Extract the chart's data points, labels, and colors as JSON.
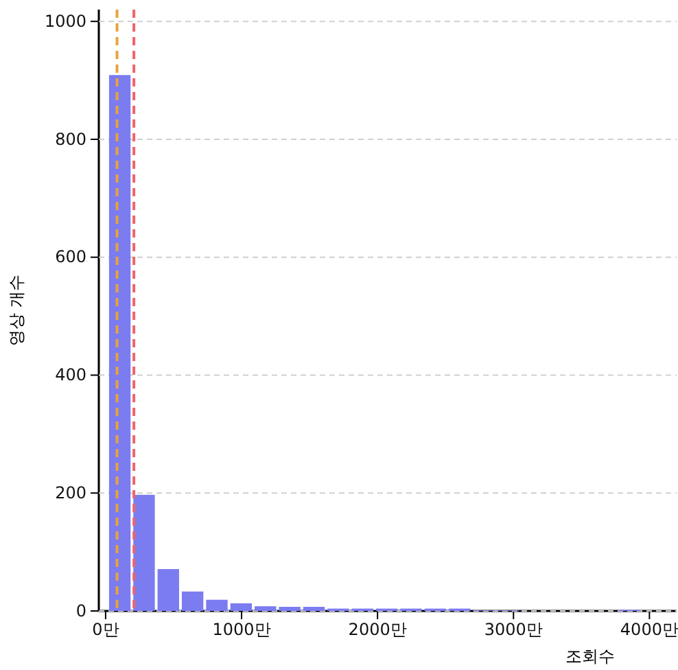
{
  "chart_data": {
    "type": "histogram",
    "xlabel": "조회수",
    "ylabel": "영상 개수",
    "bins": [
      15,
      193.5,
      372,
      550.5,
      729,
      907.5,
      1086,
      1264.5,
      1443,
      1621.5,
      1800,
      1978.5,
      2157,
      2335.5,
      2514,
      2692.5,
      2871,
      3049.5,
      3228,
      3406.5,
      3585,
      3763.5,
      3942
    ],
    "values": [
      909,
      197,
      71,
      33,
      19,
      13,
      8,
      7,
      7,
      4,
      4,
      4,
      4,
      4,
      4,
      1,
      1,
      0,
      0,
      0,
      0,
      2
    ],
    "color": "#7b7cf0",
    "xlim": [
      -50,
      4200
    ],
    "xticks": [
      {
        "value": 0,
        "label": "0만"
      },
      {
        "value": 1000,
        "label": "1000만"
      },
      {
        "value": 2000,
        "label": "2000만"
      },
      {
        "value": 3000,
        "label": "3000만"
      },
      {
        "value": 4000,
        "label": "4000만"
      }
    ],
    "ylim": [
      0,
      1020
    ],
    "yticks": [
      0,
      200,
      400,
      600,
      800,
      1000
    ],
    "grid": "y",
    "ref_lines": [
      {
        "axis": "x",
        "value": 84,
        "color": "#e8a33a",
        "line_style": "dashed"
      },
      {
        "axis": "x",
        "value": 208,
        "color": "#f06468",
        "line_style": "dashed"
      }
    ]
  }
}
